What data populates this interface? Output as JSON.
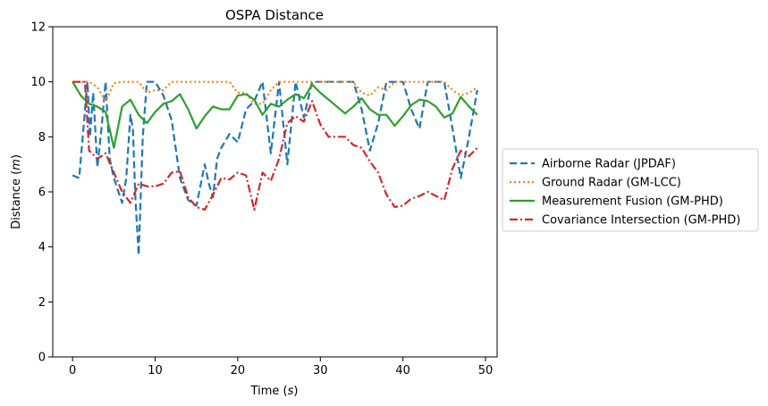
{
  "chart_data": {
    "type": "line",
    "title": "OSPA Distance",
    "xlabel_main": "Time (",
    "xlabel_unit": "s",
    "xlabel_close": ")",
    "ylabel_main": "Distance (",
    "ylabel_unit": "m",
    "ylabel_close": ")",
    "xlim": [
      -2.4,
      51.4
    ],
    "ylim": [
      0,
      12
    ],
    "xticks": [
      0,
      10,
      20,
      30,
      40,
      50
    ],
    "yticks": [
      0,
      2,
      4,
      6,
      8,
      10,
      12
    ],
    "grid": false,
    "legend_position": "outside-right",
    "x": [
      0,
      1,
      2,
      3,
      4,
      5,
      6,
      7,
      8,
      9,
      10,
      11,
      12,
      13,
      14,
      15,
      16,
      17,
      18,
      19,
      20,
      21,
      22,
      23,
      24,
      25,
      26,
      27,
      28,
      29,
      30,
      31,
      32,
      33,
      34,
      35,
      36,
      37,
      38,
      39,
      40,
      41,
      42,
      43,
      44,
      45,
      46,
      47,
      48,
      49
    ],
    "series": [
      {
        "name": "Airborne Radar (JPDAF)",
        "color": "#1f77b4",
        "dash": "8,4",
        "points": [
          [
            0,
            6.6
          ],
          [
            0.8,
            6.5
          ],
          [
            1.8,
            10
          ],
          [
            2.1,
            8.0
          ],
          [
            2.5,
            9.6
          ],
          [
            3.0,
            6.9
          ],
          [
            3.5,
            8.3
          ],
          [
            4.0,
            10
          ],
          [
            4.5,
            7.2
          ],
          [
            5,
            6.5
          ],
          [
            6,
            5.6
          ],
          [
            6.5,
            6.5
          ],
          [
            7,
            8.8
          ],
          [
            7.3,
            8.3
          ],
          [
            7.6,
            5.8
          ],
          [
            8,
            3.7
          ],
          [
            8.5,
            8.0
          ],
          [
            9,
            10
          ],
          [
            10,
            10
          ],
          [
            11,
            9.5
          ],
          [
            12,
            8.6
          ],
          [
            13,
            6.5
          ],
          [
            14,
            5.7
          ],
          [
            15,
            5.5
          ],
          [
            16,
            7.0
          ],
          [
            16.5,
            6.3
          ],
          [
            17,
            5.8
          ],
          [
            17.5,
            7.2
          ],
          [
            18,
            7.6
          ],
          [
            19,
            8.1
          ],
          [
            20,
            7.8
          ],
          [
            21,
            9.0
          ],
          [
            22,
            9.3
          ],
          [
            23,
            10
          ],
          [
            24,
            7.4
          ],
          [
            25,
            10
          ],
          [
            26,
            7.0
          ],
          [
            27,
            10
          ],
          [
            28,
            8.7
          ],
          [
            29,
            10
          ],
          [
            30,
            10
          ],
          [
            31,
            10
          ],
          [
            32,
            10
          ],
          [
            33,
            10
          ],
          [
            34,
            10
          ],
          [
            35,
            9.0
          ],
          [
            36,
            7.5
          ],
          [
            37,
            8.5
          ],
          [
            38,
            10
          ],
          [
            39,
            10
          ],
          [
            40,
            10
          ],
          [
            41,
            9.0
          ],
          [
            42,
            8.3
          ],
          [
            43,
            10
          ],
          [
            44,
            10
          ],
          [
            45,
            10
          ],
          [
            46,
            8.3
          ],
          [
            47,
            6.5
          ],
          [
            48,
            8.0
          ],
          [
            49,
            9.7
          ]
        ]
      },
      {
        "name": "Ground Radar (GM-LCC)",
        "color": "#ff7f0e",
        "dash": "2,3",
        "points": [
          [
            0,
            10
          ],
          [
            1,
            10
          ],
          [
            2,
            10
          ],
          [
            3,
            9.8
          ],
          [
            4,
            9.3
          ],
          [
            5,
            9.95
          ],
          [
            6,
            10
          ],
          [
            7,
            10
          ],
          [
            8,
            10
          ],
          [
            9,
            9.6
          ],
          [
            10,
            9.7
          ],
          [
            11,
            9.7
          ],
          [
            12,
            10
          ],
          [
            13,
            10
          ],
          [
            14,
            10
          ],
          [
            15,
            10
          ],
          [
            16,
            10
          ],
          [
            17,
            10
          ],
          [
            18,
            10
          ],
          [
            19,
            10
          ],
          [
            20,
            9.6
          ],
          [
            21,
            9.6
          ],
          [
            22,
            9.2
          ],
          [
            23,
            9.2
          ],
          [
            24,
            9.7
          ],
          [
            25,
            10
          ],
          [
            26,
            10
          ],
          [
            27,
            10
          ],
          [
            28,
            10
          ],
          [
            29,
            10
          ],
          [
            30,
            10
          ],
          [
            31,
            10
          ],
          [
            32,
            10
          ],
          [
            33,
            10
          ],
          [
            34,
            10
          ],
          [
            35,
            9.6
          ],
          [
            36,
            9.5
          ],
          [
            37,
            9.8
          ],
          [
            38,
            9.7
          ],
          [
            39,
            10
          ],
          [
            40,
            10
          ],
          [
            41,
            10
          ],
          [
            42,
            10
          ],
          [
            43,
            10
          ],
          [
            44,
            10
          ],
          [
            45,
            10
          ],
          [
            46,
            9.7
          ],
          [
            47,
            9.5
          ],
          [
            48,
            9.6
          ],
          [
            49,
            9.8
          ]
        ]
      },
      {
        "name": "Measurement Fusion (GM-PHD)",
        "color": "#2ca02c",
        "dash": "",
        "points": [
          [
            0,
            10
          ],
          [
            1,
            9.5
          ],
          [
            2,
            9.2
          ],
          [
            3,
            9.1
          ],
          [
            4,
            8.9
          ],
          [
            5,
            7.6
          ],
          [
            6,
            9.1
          ],
          [
            7,
            9.35
          ],
          [
            8,
            8.8
          ],
          [
            9,
            8.5
          ],
          [
            10,
            8.9
          ],
          [
            11,
            9.2
          ],
          [
            12,
            9.3
          ],
          [
            13,
            9.55
          ],
          [
            14,
            9.0
          ],
          [
            15,
            8.3
          ],
          [
            16,
            8.75
          ],
          [
            17,
            9.1
          ],
          [
            18,
            9.0
          ],
          [
            19,
            9.0
          ],
          [
            20,
            9.5
          ],
          [
            21,
            9.55
          ],
          [
            22,
            9.35
          ],
          [
            23,
            8.8
          ],
          [
            24,
            9.2
          ],
          [
            25,
            9.1
          ],
          [
            26,
            9.35
          ],
          [
            27,
            9.55
          ],
          [
            28,
            9.4
          ],
          [
            29,
            9.9
          ],
          [
            30,
            9.6
          ],
          [
            31,
            9.35
          ],
          [
            32,
            9.1
          ],
          [
            33,
            8.85
          ],
          [
            34,
            9.1
          ],
          [
            35,
            9.4
          ],
          [
            36,
            9.0
          ],
          [
            37,
            8.8
          ],
          [
            38,
            8.8
          ],
          [
            39,
            8.4
          ],
          [
            40,
            8.75
          ],
          [
            41,
            9.15
          ],
          [
            42,
            9.35
          ],
          [
            43,
            9.3
          ],
          [
            44,
            9.1
          ],
          [
            45,
            8.7
          ],
          [
            46,
            8.85
          ],
          [
            47,
            9.45
          ],
          [
            48,
            9.1
          ],
          [
            49,
            8.8
          ]
        ]
      },
      {
        "name": "Covariance Intersection (GM-PHD)",
        "color": "#d62728",
        "dash": "9,3,2,3",
        "points": [
          [
            0,
            10
          ],
          [
            1,
            10
          ],
          [
            1.5,
            10
          ],
          [
            2,
            7.5
          ],
          [
            3,
            7.2
          ],
          [
            4,
            7.4
          ],
          [
            5,
            6.7
          ],
          [
            6,
            6.0
          ],
          [
            7,
            5.6
          ],
          [
            8,
            6.3
          ],
          [
            9,
            6.2
          ],
          [
            10,
            6.2
          ],
          [
            11,
            6.3
          ],
          [
            12,
            6.7
          ],
          [
            13,
            6.75
          ],
          [
            14,
            5.8
          ],
          [
            15,
            5.45
          ],
          [
            16,
            5.35
          ],
          [
            17,
            5.9
          ],
          [
            18,
            6.5
          ],
          [
            19,
            6.45
          ],
          [
            20,
            6.7
          ],
          [
            21,
            6.6
          ],
          [
            22,
            5.35
          ],
          [
            23,
            6.7
          ],
          [
            24,
            6.4
          ],
          [
            25,
            7.2
          ],
          [
            26,
            8.5
          ],
          [
            27,
            8.75
          ],
          [
            28,
            8.55
          ],
          [
            29,
            9.3
          ],
          [
            30,
            8.45
          ],
          [
            31,
            8.0
          ],
          [
            32,
            8.0
          ],
          [
            33,
            8.0
          ],
          [
            34,
            7.7
          ],
          [
            35,
            7.6
          ],
          [
            36,
            7.1
          ],
          [
            37,
            6.7
          ],
          [
            38,
            5.9
          ],
          [
            39,
            5.45
          ],
          [
            40,
            5.5
          ],
          [
            41,
            5.75
          ],
          [
            42,
            5.85
          ],
          [
            43,
            6.0
          ],
          [
            44,
            5.85
          ],
          [
            45,
            5.7
          ],
          [
            46,
            6.85
          ],
          [
            47,
            7.5
          ],
          [
            48,
            7.3
          ],
          [
            49,
            7.6
          ]
        ]
      }
    ]
  }
}
